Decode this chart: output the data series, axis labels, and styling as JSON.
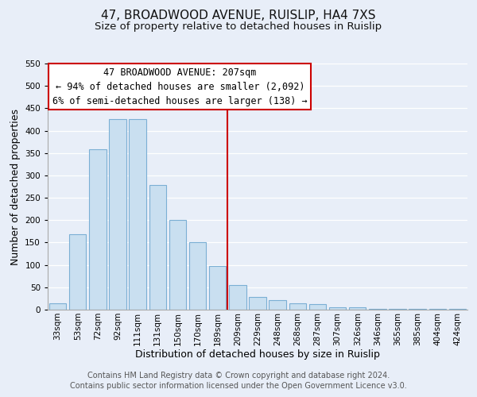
{
  "title": "47, BROADWOOD AVENUE, RUISLIP, HA4 7XS",
  "subtitle": "Size of property relative to detached houses in Ruislip",
  "xlabel": "Distribution of detached houses by size in Ruislip",
  "ylabel": "Number of detached properties",
  "bar_labels": [
    "33sqm",
    "53sqm",
    "72sqm",
    "92sqm",
    "111sqm",
    "131sqm",
    "150sqm",
    "170sqm",
    "189sqm",
    "209sqm",
    "229sqm",
    "248sqm",
    "268sqm",
    "287sqm",
    "307sqm",
    "326sqm",
    "346sqm",
    "365sqm",
    "385sqm",
    "404sqm",
    "424sqm"
  ],
  "bar_heights": [
    15,
    168,
    358,
    425,
    425,
    278,
    200,
    150,
    98,
    55,
    28,
    22,
    15,
    13,
    5,
    5,
    2,
    2,
    1,
    1,
    1
  ],
  "bar_color": "#c9dff0",
  "bar_edge_color": "#7bafd4",
  "ylim": [
    0,
    550
  ],
  "yticks": [
    0,
    50,
    100,
    150,
    200,
    250,
    300,
    350,
    400,
    450,
    500,
    550
  ],
  "vline_x_index": 9,
  "vline_color": "#cc0000",
  "annotation_line1": "47 BROADWOOD AVENUE: 207sqm",
  "annotation_line2": "← 94% of detached houses are smaller (2,092)",
  "annotation_line3": "6% of semi-detached houses are larger (138) →",
  "annotation_box_color": "#ffffff",
  "annotation_border_color": "#cc0000",
  "footer1": "Contains HM Land Registry data © Crown copyright and database right 2024.",
  "footer2": "Contains public sector information licensed under the Open Government Licence v3.0.",
  "fig_background_color": "#e8eef8",
  "plot_background_color": "#e8eef8",
  "grid_color": "#ffffff",
  "title_fontsize": 11,
  "subtitle_fontsize": 9.5,
  "axis_label_fontsize": 9,
  "tick_fontsize": 7.5,
  "annotation_fontsize": 8.5,
  "footer_fontsize": 7
}
